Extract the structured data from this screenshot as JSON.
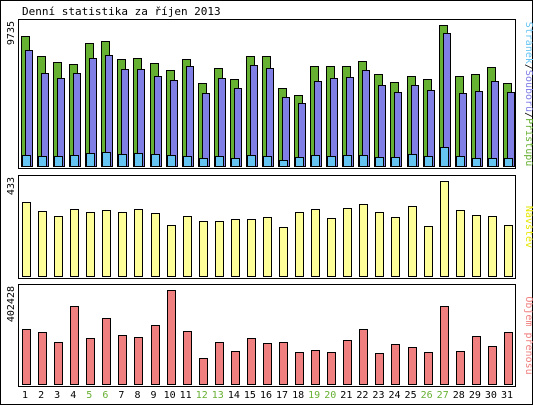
{
  "title": "Denní statistika za říjen 2013",
  "colors": {
    "background": "#ffffff",
    "frame": "#000000",
    "hits": "#66b032",
    "files": "#7f7fe6",
    "pages": "#66c4f2",
    "visits": "#ffff99",
    "kbytes": "#f07f7f",
    "weekend_label": "#66b032",
    "weekday_label": "#000000"
  },
  "chart_data": [
    {
      "type": "bar",
      "panel": "requests",
      "ymax_label": "9735",
      "ylim": [
        0,
        9735
      ],
      "axis_title_parts": [
        {
          "text": "Stránek",
          "color": "#66c4f2"
        },
        {
          "text": "/",
          "color": "#000000"
        },
        {
          "text": "Souborů",
          "color": "#7f7fe6"
        },
        {
          "text": "/",
          "color": "#000000"
        },
        {
          "text": "Přístupů",
          "color": "#66b032"
        }
      ],
      "categories": [
        "1",
        "2",
        "3",
        "4",
        "5",
        "6",
        "7",
        "8",
        "9",
        "10",
        "11",
        "12",
        "13",
        "14",
        "15",
        "16",
        "17",
        "18",
        "19",
        "20",
        "21",
        "22",
        "23",
        "24",
        "25",
        "26",
        "27",
        "28",
        "29",
        "30",
        "31"
      ],
      "series": [
        {
          "name": "Přístupů",
          "values": [
            8960,
            7630,
            7170,
            7050,
            8480,
            8640,
            7380,
            7450,
            7110,
            6650,
            7420,
            5740,
            6780,
            6030,
            7630,
            7600,
            5430,
            4970,
            6920,
            6930,
            6920,
            7250,
            6370,
            5810,
            6250,
            6010,
            9735,
            6250,
            6400,
            6880,
            5790
          ]
        },
        {
          "name": "Souborů",
          "values": [
            8000,
            6450,
            6080,
            6430,
            7500,
            7660,
            6690,
            6750,
            6250,
            5970,
            6950,
            5100,
            6110,
            5390,
            6960,
            6800,
            4800,
            4390,
            5880,
            6110,
            6200,
            6680,
            5630,
            5110,
            5640,
            5280,
            9200,
            5040,
            5220,
            5870,
            5150
          ]
        },
        {
          "name": "Stránek",
          "values": [
            830,
            780,
            730,
            790,
            960,
            1030,
            880,
            940,
            910,
            800,
            760,
            610,
            720,
            650,
            790,
            770,
            480,
            690,
            830,
            760,
            790,
            810,
            710,
            670,
            920,
            720,
            1340,
            730,
            650,
            610,
            620
          ]
        }
      ]
    },
    {
      "type": "bar",
      "panel": "visits",
      "ymax_label": "433",
      "ylim": [
        0,
        433
      ],
      "axis_title": "Návštěv",
      "categories": [
        "1",
        "2",
        "3",
        "4",
        "5",
        "6",
        "7",
        "8",
        "9",
        "10",
        "11",
        "12",
        "13",
        "14",
        "15",
        "16",
        "17",
        "18",
        "19",
        "20",
        "21",
        "22",
        "23",
        "24",
        "25",
        "26",
        "27",
        "28",
        "29",
        "30",
        "31"
      ],
      "series": [
        {
          "name": "Návštěv",
          "values": [
            338,
            298,
            277,
            305,
            292,
            300,
            293,
            307,
            288,
            236,
            274,
            254,
            253,
            261,
            261,
            271,
            226,
            291,
            308,
            264,
            313,
            328,
            291,
            270,
            320,
            231,
            433,
            302,
            280,
            275,
            235
          ]
        }
      ]
    },
    {
      "type": "bar",
      "panel": "kbytes",
      "ymax_label": "402428",
      "ylim": [
        0,
        402428
      ],
      "axis_title": "Objem přenosu",
      "categories": [
        "1",
        "2",
        "3",
        "4",
        "5",
        "6",
        "7",
        "8",
        "9",
        "10",
        "11",
        "12",
        "13",
        "14",
        "15",
        "16",
        "17",
        "18",
        "19",
        "20",
        "21",
        "22",
        "23",
        "24",
        "25",
        "26",
        "27",
        "28",
        "29",
        "30",
        "31"
      ],
      "series": [
        {
          "name": "Objem přenosu",
          "values": [
            235500,
            225100,
            181300,
            333300,
            200700,
            285100,
            211500,
            201900,
            255300,
            402428,
            228400,
            115800,
            182000,
            145700,
            197400,
            176900,
            180400,
            140600,
            148300,
            140000,
            188600,
            237900,
            136700,
            172000,
            161200,
            138400,
            333700,
            144600,
            208200,
            166900,
            225500
          ]
        }
      ]
    }
  ]
}
